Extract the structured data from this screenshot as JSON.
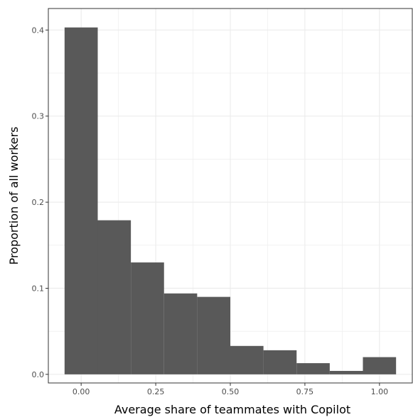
{
  "chart_data": {
    "type": "bar",
    "subtype": "histogram",
    "xlabel": "Average share of teammates with Copilot",
    "ylabel": "Proportion of all workers",
    "xlim": [
      -0.11,
      1.11
    ],
    "ylim": [
      -0.01,
      0.425
    ],
    "x_ticks": [
      0.0,
      0.25,
      0.5,
      0.75,
      1.0
    ],
    "x_tick_labels": [
      "0.00",
      "0.25",
      "0.50",
      "0.75",
      "1.00"
    ],
    "y_ticks": [
      0.0,
      0.1,
      0.2,
      0.3,
      0.4
    ],
    "y_tick_labels": [
      "0.0",
      "0.1",
      "0.2",
      "0.3",
      "0.4"
    ],
    "bins": [
      {
        "x0": -0.0556,
        "x1": 0.0556,
        "value": 0.403
      },
      {
        "x0": 0.0556,
        "x1": 0.1667,
        "value": 0.179
      },
      {
        "x0": 0.1667,
        "x1": 0.2778,
        "value": 0.13
      },
      {
        "x0": 0.2778,
        "x1": 0.3889,
        "value": 0.094
      },
      {
        "x0": 0.3889,
        "x1": 0.5,
        "value": 0.09
      },
      {
        "x0": 0.5,
        "x1": 0.6111,
        "value": 0.033
      },
      {
        "x0": 0.6111,
        "x1": 0.7222,
        "value": 0.028
      },
      {
        "x0": 0.7222,
        "x1": 0.8333,
        "value": 0.013
      },
      {
        "x0": 0.8333,
        "x1": 0.9444,
        "value": 0.004
      },
      {
        "x0": 0.9444,
        "x1": 1.0556,
        "value": 0.02
      }
    ],
    "grid": true,
    "bar_color": "#595959",
    "grid_color": "#ebebeb",
    "panel_border_color": "#333333"
  }
}
